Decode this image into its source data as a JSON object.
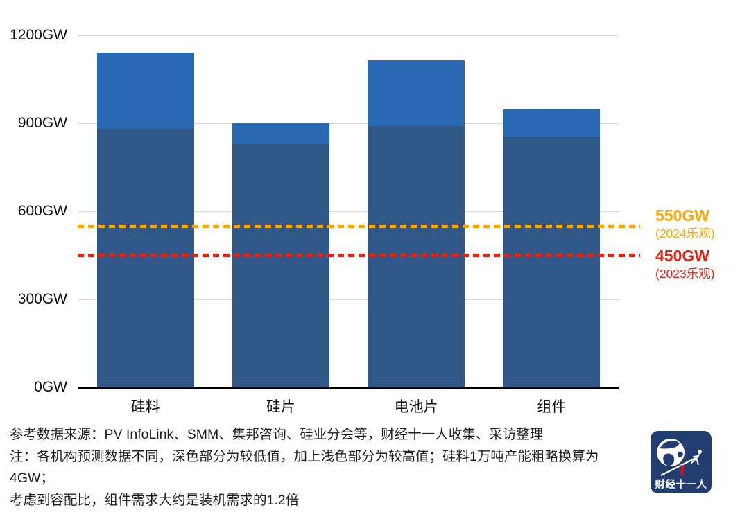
{
  "chart_data": {
    "type": "bar",
    "title": "",
    "unit": "GW",
    "categories": [
      "硅料",
      "硅片",
      "电池片",
      "组件"
    ],
    "series": [
      {
        "name": "较高值(浅色部分)",
        "values": [
          1140,
          900,
          1115,
          950
        ],
        "color": "#2A69B3"
      },
      {
        "name": "较低值(深色部分)",
        "values": [
          880,
          830,
          890,
          855
        ],
        "color": "#2F5788"
      }
    ],
    "ylim": [
      0,
      1200
    ],
    "yticks": [
      {
        "value": 0,
        "label": "0GW"
      },
      {
        "value": 300,
        "label": "300GW"
      },
      {
        "value": 600,
        "label": "600GW"
      },
      {
        "value": 900,
        "label": "900GW"
      },
      {
        "value": 1200,
        "label": "1200GW"
      }
    ],
    "grid": "horizontal",
    "legend": "none",
    "reference_lines": [
      {
        "value": 550,
        "label": "550GW",
        "sublabel": "(2024乐观)",
        "color": "#FFA400"
      },
      {
        "value": 450,
        "label": "450GW",
        "sublabel": "(2023乐观)",
        "color": "#E8220E"
      }
    ],
    "colors": {
      "gridline": "#d9d9d9",
      "axis": "#000000"
    }
  },
  "footer": {
    "lines": [
      "参考数据来源：PV InfoLink、SMM、集邦咨询、硅业分会等，财经十一人收集、采访整理",
      "注：各机构预测数据不同，深色部分为较低值，加上浅色部分为较高值；硅料1万吨产能粗略换算为4GW；",
      "考虑到容配比，组件需求大约是装机需求的1.2倍"
    ]
  },
  "logo": {
    "text": "财经十一人",
    "bg_color": "#223E70"
  }
}
